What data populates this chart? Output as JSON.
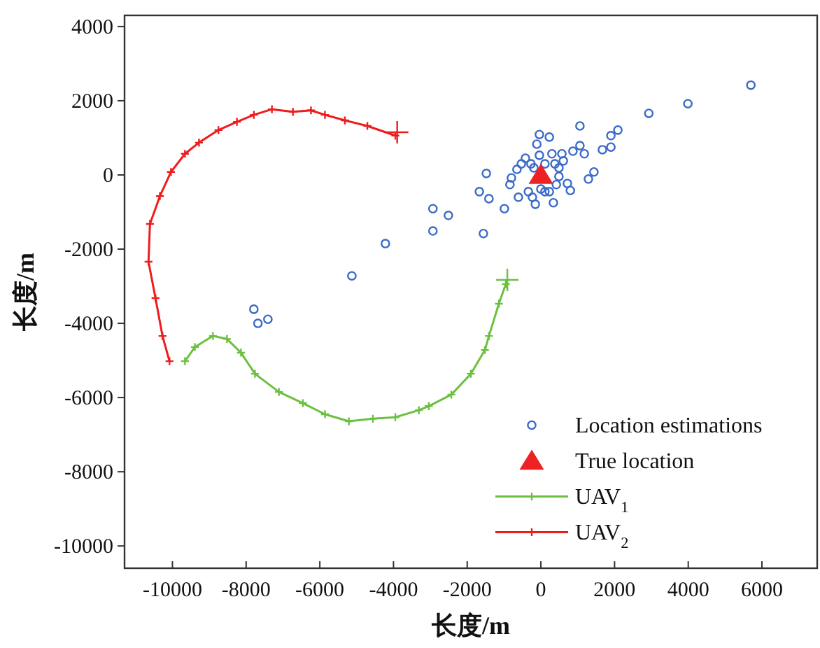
{
  "chart_data": {
    "type": "scatter",
    "xlabel": "长度/m",
    "ylabel": "长度/m",
    "xlim": [
      -11300,
      7500
    ],
    "ylim": [
      -10600,
      4300
    ],
    "xticks": [
      -10000,
      -8000,
      -6000,
      -4000,
      -2000,
      0,
      2000,
      4000,
      6000
    ],
    "yticks": [
      -10000,
      -8000,
      -6000,
      -4000,
      -2000,
      0,
      2000,
      4000
    ],
    "grid": false,
    "legend": "bottom right",
    "series": [
      {
        "name": "Location estimations",
        "marker": "circle",
        "color": "#3a6bc9",
        "x": [
          -7790,
          -7680,
          -7410,
          -5130,
          -4220,
          5700,
          3990,
          2930,
          2090,
          1900,
          1900,
          1670,
          1060,
          1440,
          1290,
          1060,
          1180,
          870,
          800,
          720,
          340,
          -40,
          230,
          -110,
          -40,
          300,
          -420,
          -530,
          -650,
          -800,
          -840,
          -610,
          -990,
          -1480,
          -1670,
          -1410,
          -1560,
          -2510,
          -2930,
          -2930,
          -150,
          -230,
          110,
          -340,
          490,
          380,
          110,
          -190,
          490,
          420,
          230,
          0,
          -270,
          610,
          570
        ],
        "values": [
          -3620,
          -4000,
          -3890,
          -2720,
          -1850,
          2420,
          1920,
          1660,
          1210,
          1060,
          750,
          680,
          1320,
          80,
          -110,
          790,
          570,
          640,
          -420,
          -230,
          -750,
          1090,
          1020,
          830,
          530,
          570,
          450,
          300,
          150,
          -80,
          -260,
          -600,
          -910,
          40,
          -450,
          -640,
          -1580,
          -1090,
          -910,
          -1510,
          -790,
          -600,
          -450,
          -450,
          190,
          300,
          300,
          190,
          -40,
          -260,
          -450,
          -380,
          300,
          380,
          570
        ]
      },
      {
        "name": "True location",
        "marker": "triangle",
        "color": "#ee2222",
        "x": [
          0
        ],
        "values": [
          0
        ]
      },
      {
        "name": "UAV$_{1}$",
        "type": "line",
        "marker": "cross",
        "line_style": "solid",
        "color": "#6cc040",
        "x": [
          -9660,
          -9390,
          -8900,
          -8520,
          -8140,
          -7760,
          -7110,
          -6460,
          -5860,
          -5210,
          -4560,
          -3950,
          -3310,
          -3040,
          -2430,
          -1900,
          -1520,
          -1410,
          -1140,
          -950
        ],
        "values": [
          -5020,
          -4640,
          -4340,
          -4420,
          -4790,
          -5360,
          -5850,
          -6150,
          -6450,
          -6640,
          -6570,
          -6530,
          -6340,
          -6230,
          -5920,
          -5360,
          -4720,
          -4340,
          -3470,
          -2940
        ]
      },
      {
        "name": "UAV$_{2}$",
        "type": "line",
        "marker": "cross",
        "line_style": "solid",
        "color": "#ee1c1c",
        "x": [
          -10080,
          -10270,
          -10460,
          -10650,
          -10610,
          -10340,
          -10040,
          -9660,
          -9280,
          -8750,
          -8250,
          -7790,
          -7300,
          -6730,
          -6240,
          -5860,
          -5320,
          -4710,
          -3950
        ],
        "values": [
          -5020,
          -4340,
          -3320,
          -2340,
          -1320,
          -570,
          80,
          570,
          870,
          1210,
          1430,
          1620,
          1770,
          1700,
          1740,
          1620,
          1470,
          1320,
          1060
        ]
      },
      {
        "marker": "cross",
        "color": "#6cc040",
        "x": [
          -910
        ],
        "values": [
          -2830
        ]
      },
      {
        "marker": "cross",
        "color": "#ee1c1c",
        "x": [
          -3900
        ],
        "values": [
          1150
        ]
      }
    ]
  }
}
